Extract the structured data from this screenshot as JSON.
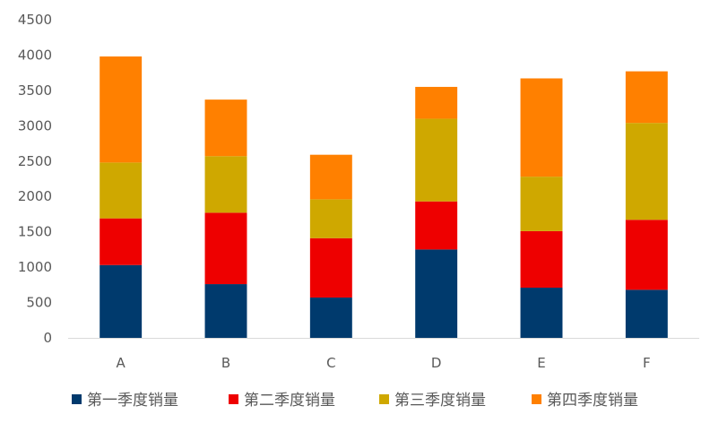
{
  "chart_data": {
    "type": "bar",
    "stacked": true,
    "categories": [
      "A",
      "B",
      "C",
      "D",
      "E",
      "F"
    ],
    "series": [
      {
        "name": "第一季度销量",
        "color": "#003A6D",
        "values": [
          1030,
          760,
          570,
          1250,
          710,
          680
        ]
      },
      {
        "name": "第二季度销量",
        "color": "#EE0000",
        "values": [
          660,
          1010,
          840,
          680,
          800,
          990
        ]
      },
      {
        "name": "第三季度销量",
        "color": "#CFA800",
        "values": [
          790,
          800,
          550,
          1170,
          770,
          1370
        ]
      },
      {
        "name": "第四季度销量",
        "color": "#FF8000",
        "values": [
          1500,
          800,
          630,
          450,
          1390,
          730
        ]
      }
    ],
    "ylim": [
      0,
      4500
    ],
    "yticks": [
      0,
      500,
      1000,
      1500,
      2000,
      2500,
      3000,
      3500,
      4000,
      4500
    ],
    "grid": false,
    "legend": "bottom"
  }
}
